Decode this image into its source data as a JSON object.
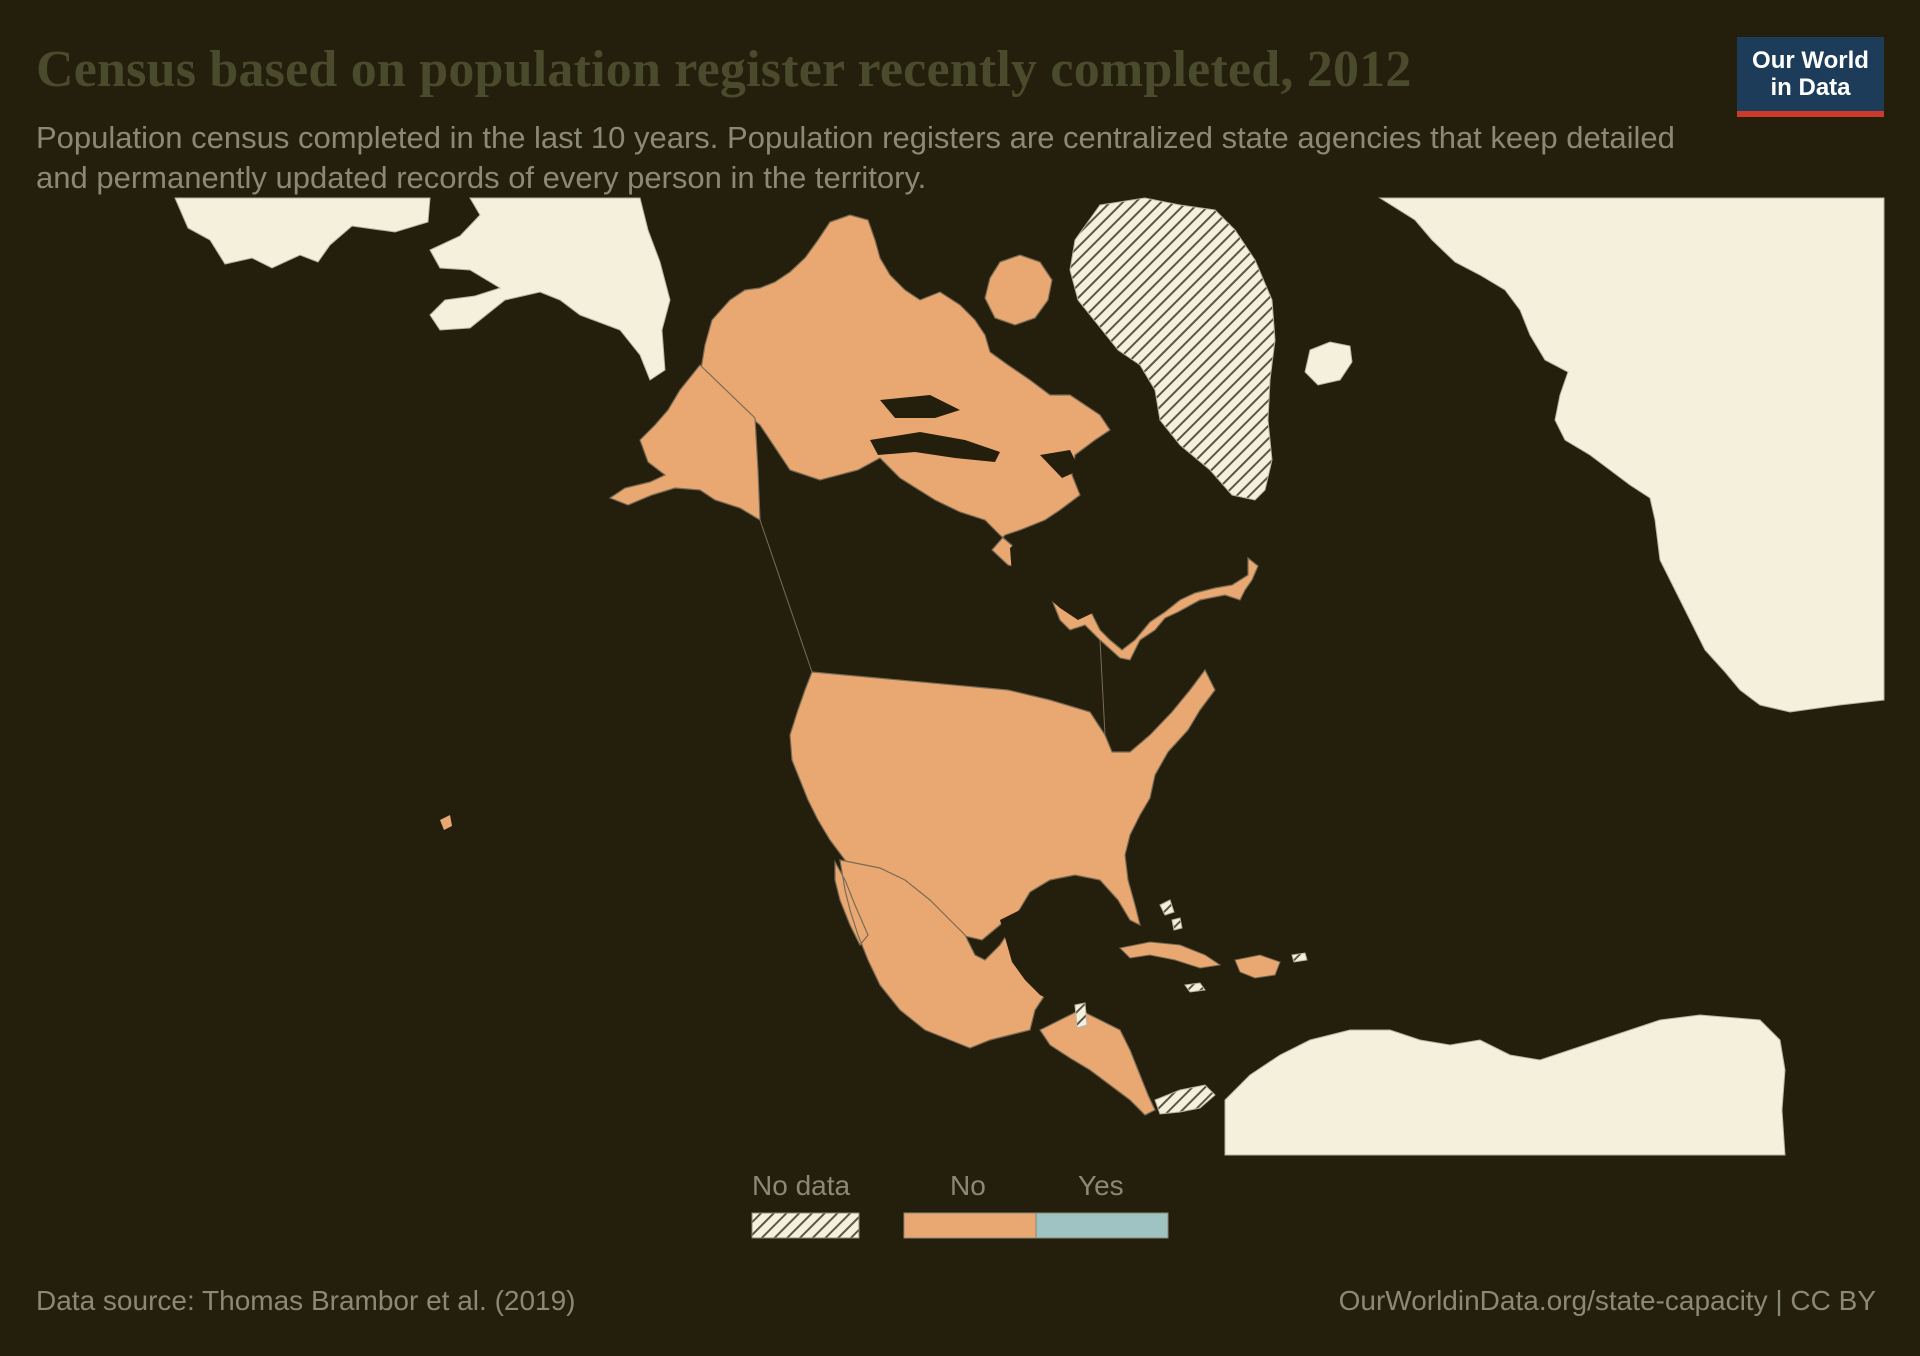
{
  "header": {
    "title": "Census based on population register recently completed, 2012",
    "subtitle": "Population census completed in the last 10 years. Population registers are centralized state agencies that keep detailed and permanently updated records of every person in the territory."
  },
  "logo": {
    "line1": "Our World",
    "line2": "in Data"
  },
  "legend": {
    "items": [
      {
        "label": "No data",
        "pattern": "hatched"
      },
      {
        "label": "No",
        "color": "#e9a871"
      },
      {
        "label": "Yes",
        "color": "#9fc3c3"
      }
    ]
  },
  "map": {
    "region": "North America",
    "colors": {
      "no": "#e9a871",
      "yes": "#9fc3c3",
      "no_data_land": "#f5f0dc",
      "background": "#231f0c",
      "border": "#7a6b55"
    },
    "countries_no": [
      "Canada",
      "United States",
      "Mexico",
      "Guatemala",
      "Honduras",
      "Nicaragua",
      "Costa Rica",
      "El Salvador",
      "Cuba",
      "Haiti",
      "Dominican Republic"
    ],
    "countries_no_data": [
      "Greenland",
      "Belize",
      "Panama",
      "Bahamas",
      "Jamaica",
      "Puerto Rico"
    ]
  },
  "footer": {
    "source": "Data source: Thomas Brambor et al. (2019)",
    "url": "OurWorldinData.org/state-capacity | CC BY"
  }
}
